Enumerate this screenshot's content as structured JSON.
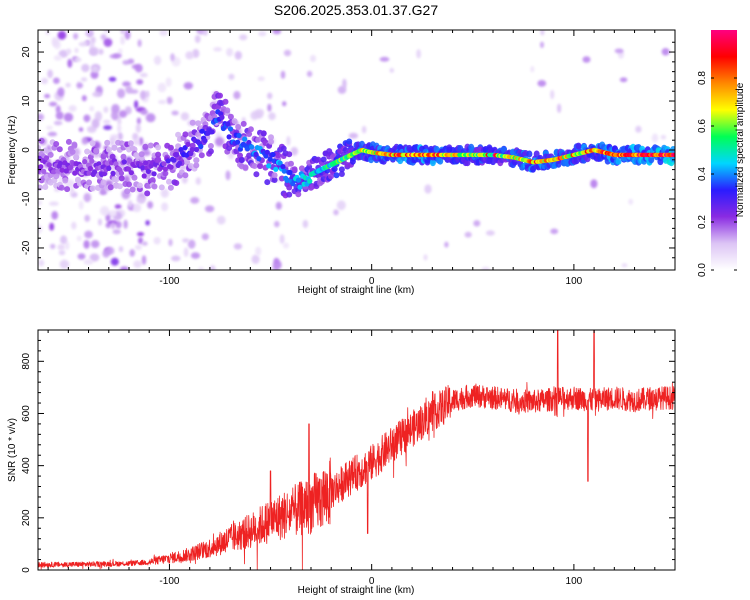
{
  "title": "S206.2025.353.01.37.G27",
  "chart_data": [
    {
      "type": "heatmap",
      "xlabel": "Height of straight line (km)",
      "ylabel": "Frequency (Hz)",
      "xlim": [
        -165,
        150
      ],
      "ylim": [
        -24.5,
        24.5
      ],
      "x_ticks": [
        -100,
        0,
        100
      ],
      "y_ticks": [
        -20,
        -10,
        0,
        10,
        20
      ],
      "colorbar": {
        "label": "Normalized spectral amplitude",
        "range": [
          0,
          1
        ],
        "ticks": [
          0.0,
          0.2,
          0.4,
          0.6,
          0.8
        ],
        "colors": [
          "#ffffff",
          "#dcc4f5",
          "#8a2be2",
          "#2a1cff",
          "#00d6ff",
          "#00ff55",
          "#ffff00",
          "#ff8800",
          "#ff0000",
          "#ff0080"
        ]
      },
      "ridge": {
        "x": [
          -165,
          -140,
          -120,
          -110,
          -100,
          -90,
          -80,
          -76,
          -70,
          -60,
          -50,
          -40,
          -36,
          -30,
          -20,
          -10,
          -5,
          0,
          10,
          20,
          40,
          60,
          70,
          75,
          80,
          90,
          100,
          110,
          120,
          130,
          140,
          150
        ],
        "frequency": [
          -3,
          -3.5,
          -3.5,
          -4,
          -3,
          0,
          4,
          8,
          3,
          0,
          -2,
          -5.5,
          -6.5,
          -5,
          -3,
          -1,
          0,
          -0.5,
          -1,
          -1,
          -1,
          -1,
          -1.5,
          -2,
          -2.5,
          -2,
          -1,
          0,
          -1,
          -1,
          -1,
          -1
        ]
      },
      "peak_amplitude_along_x": {
        "x": [
          -165,
          -120,
          -100,
          -80,
          -60,
          -40,
          -20,
          0,
          20,
          40,
          60,
          80,
          100,
          120,
          150
        ],
        "amplitude": [
          0.22,
          0.24,
          0.28,
          0.34,
          0.38,
          0.42,
          0.55,
          0.72,
          0.85,
          0.75,
          0.62,
          0.8,
          0.7,
          0.85,
          0.95
        ]
      }
    },
    {
      "type": "line",
      "xlabel": "Height of straight line (km)",
      "ylabel": "SNR (10 * v/v)",
      "xlim": [
        -165,
        150
      ],
      "ylim": [
        0,
        920
      ],
      "x_ticks": [
        -100,
        0,
        100
      ],
      "y_ticks": [
        0,
        200,
        400,
        600,
        800
      ],
      "series": [
        {
          "name": "SNR",
          "color": "#ee2222",
          "trend_x": [
            -165,
            -140,
            -120,
            -110,
            -100,
            -90,
            -80,
            -70,
            -60,
            -50,
            -40,
            -30,
            -20,
            -10,
            0,
            10,
            20,
            30,
            40,
            50,
            60,
            70,
            80,
            90,
            100,
            110,
            120,
            130,
            140,
            150
          ],
          "trend_y": [
            20,
            22,
            25,
            30,
            45,
            60,
            85,
            120,
            150,
            190,
            220,
            250,
            300,
            360,
            410,
            480,
            540,
            600,
            650,
            670,
            660,
            650,
            645,
            655,
            660,
            650,
            660,
            650,
            660,
            660
          ],
          "spikes_x": [
            -50,
            -31,
            -2,
            92,
            107,
            110
          ],
          "spikes_y": [
            380,
            560,
            140,
            920,
            340,
            930
          ]
        }
      ]
    }
  ]
}
